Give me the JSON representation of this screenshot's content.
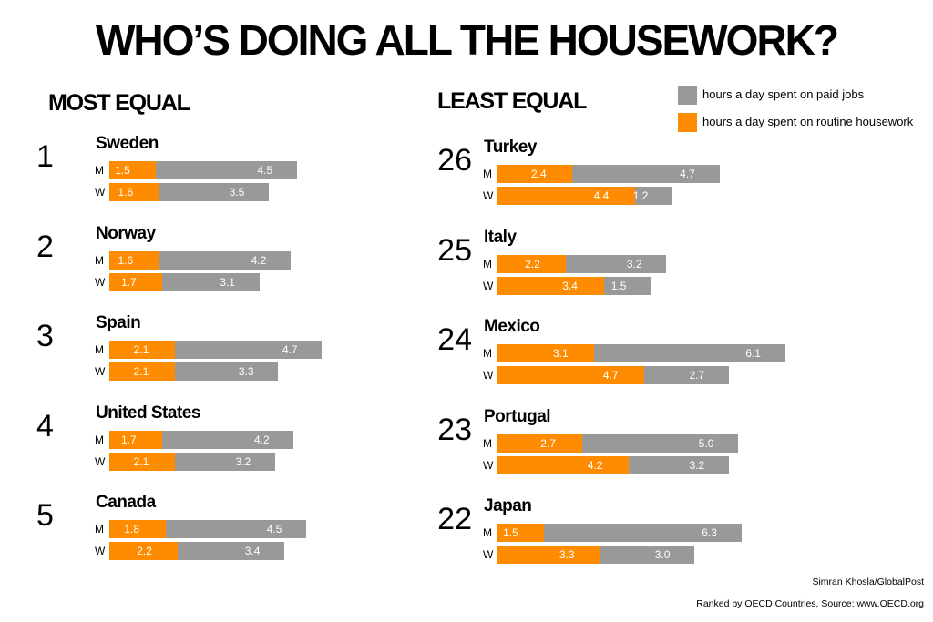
{
  "title": "WHO’S DOING ALL THE HOUSEWORK?",
  "most_equal_label": "MOST EQUAL",
  "least_equal_label": "LEAST EQUAL",
  "legend": [
    {
      "label": "hours a day spent on paid jobs",
      "color": "#999999"
    },
    {
      "label": "hours a day spent on routine housework",
      "color": "#ff8c00"
    }
  ],
  "colors": {
    "housework": "#ff8c00",
    "paid": "#999999"
  },
  "credit": "Simran Khosla/GlobalPost",
  "source": "Ranked by OECD Countries, Source: www.OECD.org",
  "chart_data": {
    "type": "bar",
    "orientation": "horizontal-stacked",
    "title": "WHO’S DOING ALL THE HOUSEWORK?",
    "series_names": [
      "hours a day spent on routine housework",
      "hours a day spent on paid jobs"
    ],
    "row_labels": [
      "M",
      "W"
    ],
    "groups": [
      {
        "label": "MOST EQUAL",
        "countries": [
          {
            "rank": "1",
            "name": "Sweden",
            "M": {
              "housework": 1.5,
              "paid": 4.5
            },
            "W": {
              "housework": 1.6,
              "paid": 3.5
            }
          },
          {
            "rank": "2",
            "name": "Norway",
            "M": {
              "housework": 1.6,
              "paid": 4.2
            },
            "W": {
              "housework": 1.7,
              "paid": 3.1
            }
          },
          {
            "rank": "3",
            "name": "Spain",
            "M": {
              "housework": 2.1,
              "paid": 4.7
            },
            "W": {
              "housework": 2.1,
              "paid": 3.3
            }
          },
          {
            "rank": "4",
            "name": "United States",
            "M": {
              "housework": 1.7,
              "paid": 4.2
            },
            "W": {
              "housework": 2.1,
              "paid": 3.2
            }
          },
          {
            "rank": "5",
            "name": "Canada",
            "M": {
              "housework": 1.8,
              "paid": 4.5
            },
            "W": {
              "housework": 2.2,
              "paid": 3.4
            }
          }
        ]
      },
      {
        "label": "LEAST EQUAL",
        "countries": [
          {
            "rank": "26",
            "name": "Turkey",
            "M": {
              "housework": 2.4,
              "paid": 4.7
            },
            "W": {
              "housework": 4.4,
              "paid": 1.2
            }
          },
          {
            "rank": "25",
            "name": "Italy",
            "M": {
              "housework": 2.2,
              "paid": 3.2
            },
            "W": {
              "housework": 3.4,
              "paid": 1.5
            }
          },
          {
            "rank": "24",
            "name": "Mexico",
            "M": {
              "housework": 3.1,
              "paid": 6.1
            },
            "W": {
              "housework": 4.7,
              "paid": 2.7
            }
          },
          {
            "rank": "23",
            "name": "Portugal",
            "M": {
              "housework": 2.7,
              "paid": 5.0
            },
            "W": {
              "housework": 4.2,
              "paid": 3.2
            }
          },
          {
            "rank": "22",
            "name": "Japan",
            "M": {
              "housework": 1.5,
              "paid": 6.3
            },
            "W": {
              "housework": 3.3,
              "paid": 3.0
            }
          }
        ]
      }
    ]
  }
}
